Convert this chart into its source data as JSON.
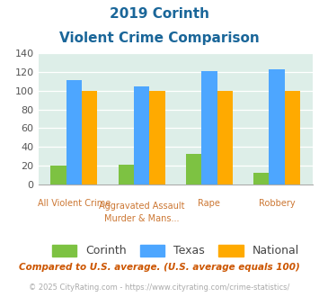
{
  "title_line1": "2019 Corinth",
  "title_line2": "Violent Crime Comparison",
  "cat_labels_top": [
    "",
    "Aggravated Assault",
    "",
    ""
  ],
  "cat_labels_bottom": [
    "All Violent Crime",
    "Murder & Mans...",
    "Rape",
    "Robbery"
  ],
  "corinth": [
    20,
    21,
    32,
    12
  ],
  "texas": [
    111,
    105,
    121,
    123
  ],
  "national": [
    100,
    100,
    100,
    100
  ],
  "corinth_color": "#7dc242",
  "texas_color": "#4da6ff",
  "national_color": "#ffaa00",
  "bg_color": "#ddeee8",
  "ylim": [
    0,
    140
  ],
  "yticks": [
    0,
    20,
    40,
    60,
    80,
    100,
    120,
    140
  ],
  "title_color": "#1a6699",
  "xlabel_color": "#cc7733",
  "legend_labels": [
    "Corinth",
    "Texas",
    "National"
  ],
  "footnote1": "Compared to U.S. average. (U.S. average equals 100)",
  "footnote2": "© 2025 CityRating.com - https://www.cityrating.com/crime-statistics/",
  "footnote1_color": "#cc5500",
  "footnote2_color": "#aaaaaa"
}
